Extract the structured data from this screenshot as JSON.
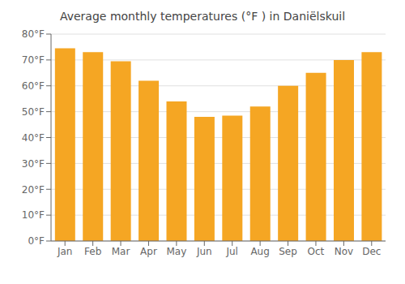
{
  "chart_data": {
    "type": "bar",
    "title": "Average monthly temperatures (°F ) in Daniëlskuil",
    "categories": [
      "Jan",
      "Feb",
      "Mar",
      "Apr",
      "May",
      "Jun",
      "Jul",
      "Aug",
      "Sep",
      "Oct",
      "Nov",
      "Dec"
    ],
    "values": [
      74.5,
      73,
      69.5,
      62,
      54,
      48,
      48.5,
      52,
      60,
      65,
      70,
      73
    ],
    "color": "#F5A623",
    "ylim": [
      0,
      80
    ],
    "yticks": [
      {
        "value": 0,
        "label": "0°F"
      },
      {
        "value": 10,
        "label": "10°F"
      },
      {
        "value": 20,
        "label": "20°F"
      },
      {
        "value": 30,
        "label": "30°F"
      },
      {
        "value": 40,
        "label": "40°F"
      },
      {
        "value": 50,
        "label": "50°F"
      },
      {
        "value": 60,
        "label": "60°F"
      },
      {
        "value": 70,
        "label": "70°F"
      },
      {
        "value": 80,
        "label": "80°F"
      }
    ],
    "grid": true
  }
}
